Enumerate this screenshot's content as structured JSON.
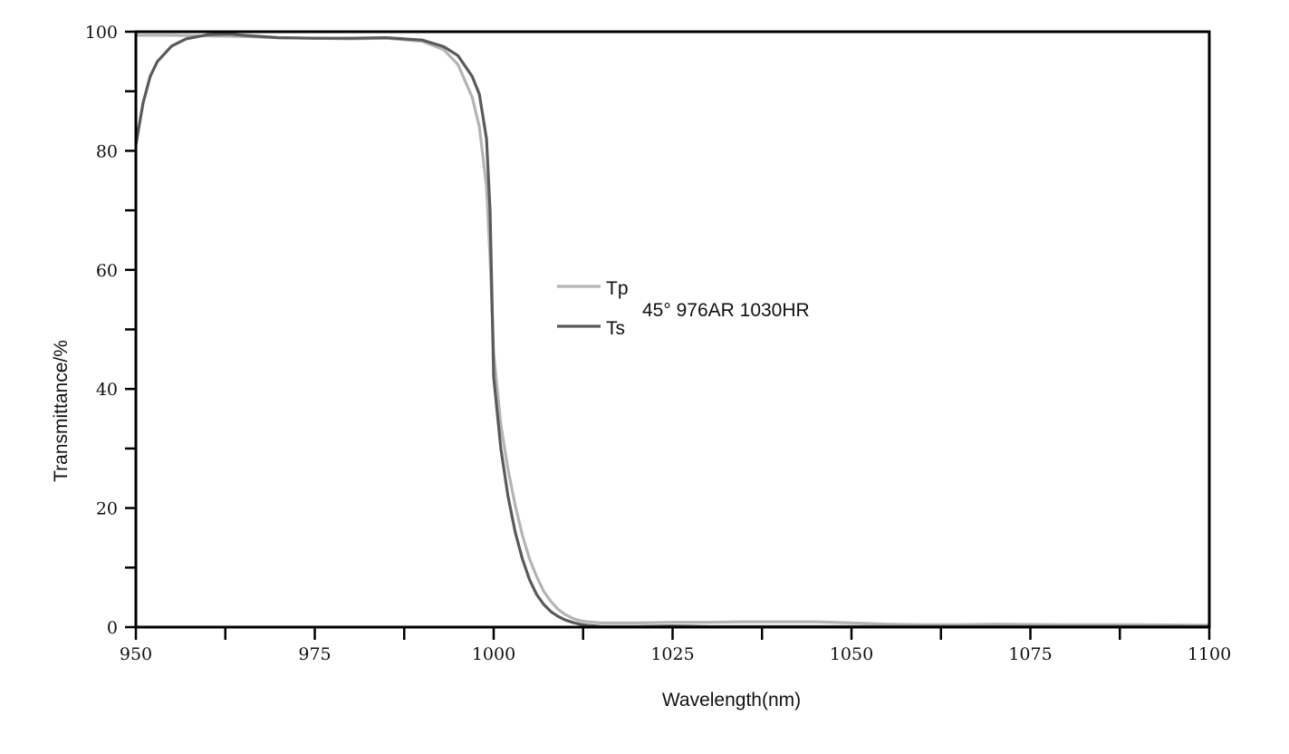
{
  "chart_data": {
    "type": "line",
    "title": "",
    "annotation": "45° 976AR 1030HR",
    "xlabel": "Wavelength(nm)",
    "ylabel": "Transmittance/%",
    "xlim": [
      950,
      1100
    ],
    "ylim": [
      0,
      100
    ],
    "x_ticks": [
      950,
      975,
      1000,
      1025,
      1050,
      1075,
      1100
    ],
    "x_tick_labels": [
      "950",
      "975",
      "1000",
      "1025",
      "1050",
      "1075",
      "1100"
    ],
    "y_ticks": [
      0,
      20,
      40,
      60,
      80,
      100
    ],
    "y_tick_labels": [
      "0",
      "20",
      "40",
      "60",
      "80",
      "100"
    ],
    "grid": false,
    "legend_position": "center",
    "series": [
      {
        "name": "Tp",
        "color": "#b4b4b4",
        "x": [
          950,
          955,
          960,
          965,
          970,
          975,
          980,
          985,
          990,
          993,
          995,
          997,
          998,
          999,
          999.5,
          1000,
          1001,
          1002,
          1003,
          1004,
          1005,
          1006,
          1007,
          1008,
          1009,
          1010,
          1011,
          1012,
          1013,
          1015,
          1020,
          1025,
          1030,
          1035,
          1040,
          1045,
          1050,
          1055,
          1060,
          1065,
          1070,
          1080,
          1090,
          1100
        ],
        "y": [
          99.4,
          99.4,
          99.3,
          99.2,
          99.0,
          98.9,
          98.8,
          98.9,
          98.4,
          97.0,
          94.5,
          89.0,
          84.0,
          74.0,
          62.0,
          46.0,
          34.0,
          26.5,
          20.5,
          15.5,
          11.5,
          8.5,
          6.0,
          4.3,
          3.0,
          2.1,
          1.5,
          1.1,
          0.9,
          0.7,
          0.7,
          0.8,
          0.8,
          0.9,
          0.9,
          0.9,
          0.7,
          0.5,
          0.4,
          0.4,
          0.5,
          0.4,
          0.4,
          0.3
        ]
      },
      {
        "name": "Ts",
        "color": "#5a5a5a",
        "x": [
          950,
          951,
          952,
          953,
          955,
          957,
          960,
          963,
          965,
          970,
          975,
          980,
          985,
          990,
          993,
          995,
          997,
          998,
          999,
          999.5,
          1000,
          1001,
          1002,
          1003,
          1004,
          1005,
          1006,
          1007,
          1008,
          1009,
          1010,
          1011,
          1012,
          1013,
          1015,
          1020,
          1025,
          1030,
          1040,
          1050,
          1060,
          1070,
          1080,
          1090,
          1100
        ],
        "y": [
          81.0,
          88.0,
          92.5,
          95.0,
          97.6,
          98.8,
          99.5,
          99.6,
          99.4,
          99.0,
          98.9,
          98.9,
          99.0,
          98.6,
          97.5,
          96.0,
          92.5,
          89.5,
          82.0,
          70.0,
          42.0,
          30.0,
          22.0,
          16.0,
          11.5,
          8.0,
          5.5,
          3.8,
          2.6,
          1.8,
          1.2,
          0.8,
          0.5,
          0.3,
          0.1,
          0.1,
          0.2,
          0.1,
          0.1,
          0.1,
          0.1,
          0.1,
          0.1,
          0.1,
          0.1
        ]
      }
    ]
  }
}
